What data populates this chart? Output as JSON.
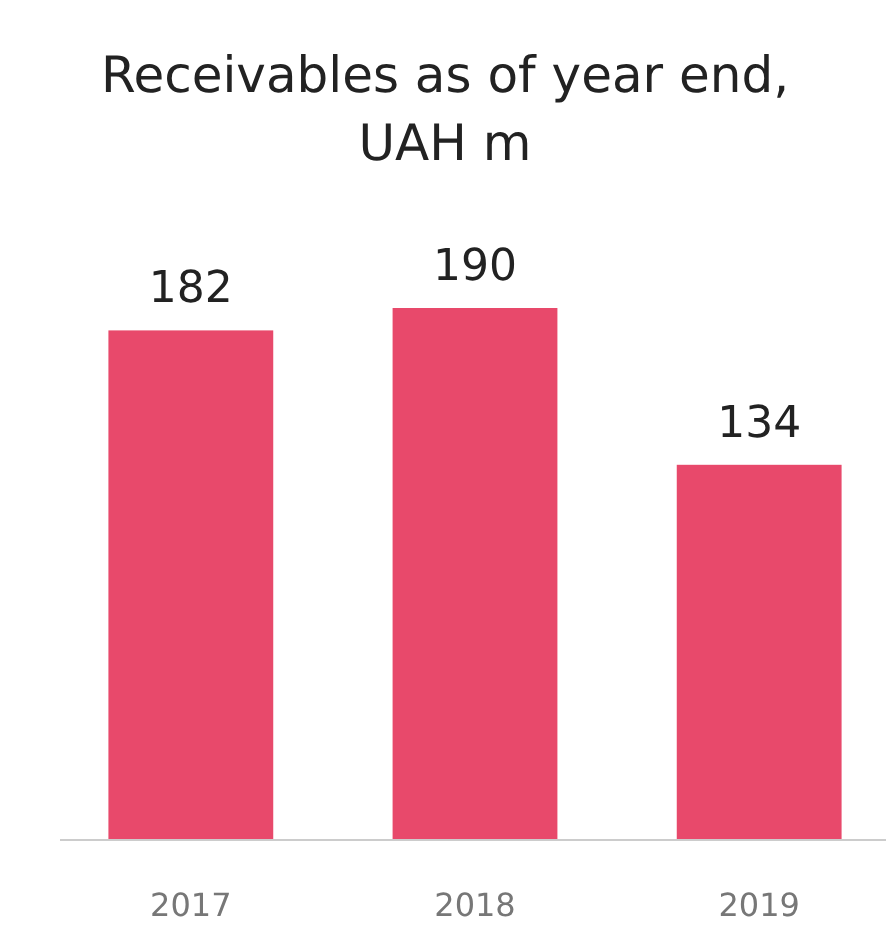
{
  "chart_data": {
    "type": "bar",
    "title": "Receivables as of year end, UAH m",
    "categories": [
      "2017",
      "2018",
      "2019"
    ],
    "values": [
      182,
      190,
      134
    ],
    "color": "#e8496b",
    "data_labels": true
  }
}
